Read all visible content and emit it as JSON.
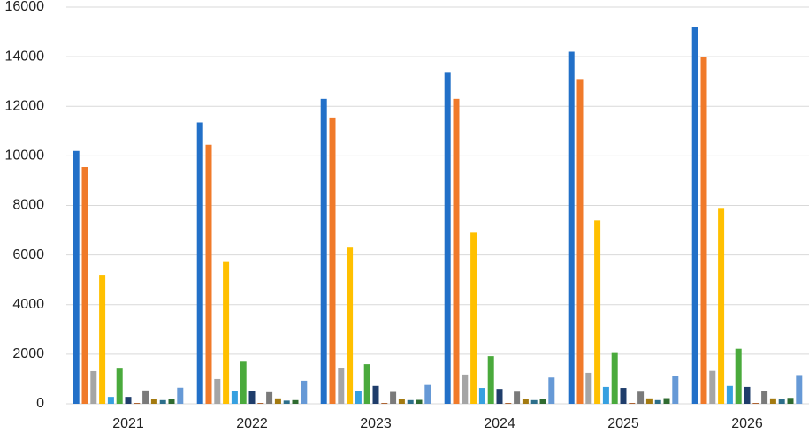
{
  "chart_data": {
    "type": "bar",
    "categories": [
      "2021",
      "2022",
      "2023",
      "2024",
      "2025",
      "2026"
    ],
    "series": [
      {
        "color": "#2270c8",
        "values": [
          10200,
          11350,
          12300,
          13350,
          14200,
          15200
        ]
      },
      {
        "color": "#f07a2a",
        "values": [
          9550,
          10450,
          11550,
          12300,
          13100,
          14000
        ]
      },
      {
        "color": "#a5a5a5",
        "values": [
          1320,
          1000,
          1450,
          1180,
          1250,
          1330
        ]
      },
      {
        "color": "#ffc000",
        "values": [
          5200,
          5750,
          6300,
          6900,
          7400,
          7900
        ]
      },
      {
        "color": "#36a0e0",
        "values": [
          280,
          520,
          500,
          640,
          680,
          720
        ]
      },
      {
        "color": "#4aaa3c",
        "values": [
          1420,
          1700,
          1600,
          1920,
          2080,
          2220
        ]
      },
      {
        "color": "#1f3d6b",
        "values": [
          280,
          500,
          720,
          600,
          640,
          680
        ]
      },
      {
        "color": "#9e480e",
        "values": [
          30,
          30,
          30,
          30,
          30,
          30
        ]
      },
      {
        "color": "#7a7a7a",
        "values": [
          540,
          470,
          480,
          490,
          490,
          520
        ]
      },
      {
        "color": "#a37a10",
        "values": [
          200,
          220,
          200,
          200,
          220,
          220
        ]
      },
      {
        "color": "#2c6e8a",
        "values": [
          150,
          130,
          150,
          150,
          150,
          180
        ]
      },
      {
        "color": "#2f6b30",
        "values": [
          180,
          150,
          160,
          200,
          230,
          240
        ]
      },
      {
        "color": "#6699d6",
        "values": [
          650,
          930,
          760,
          1060,
          1120,
          1160
        ]
      }
    ],
    "ylim": [
      0,
      16000
    ],
    "yticks": [
      0,
      2000,
      4000,
      6000,
      8000,
      10000,
      12000,
      14000,
      16000
    ],
    "grid": true
  }
}
